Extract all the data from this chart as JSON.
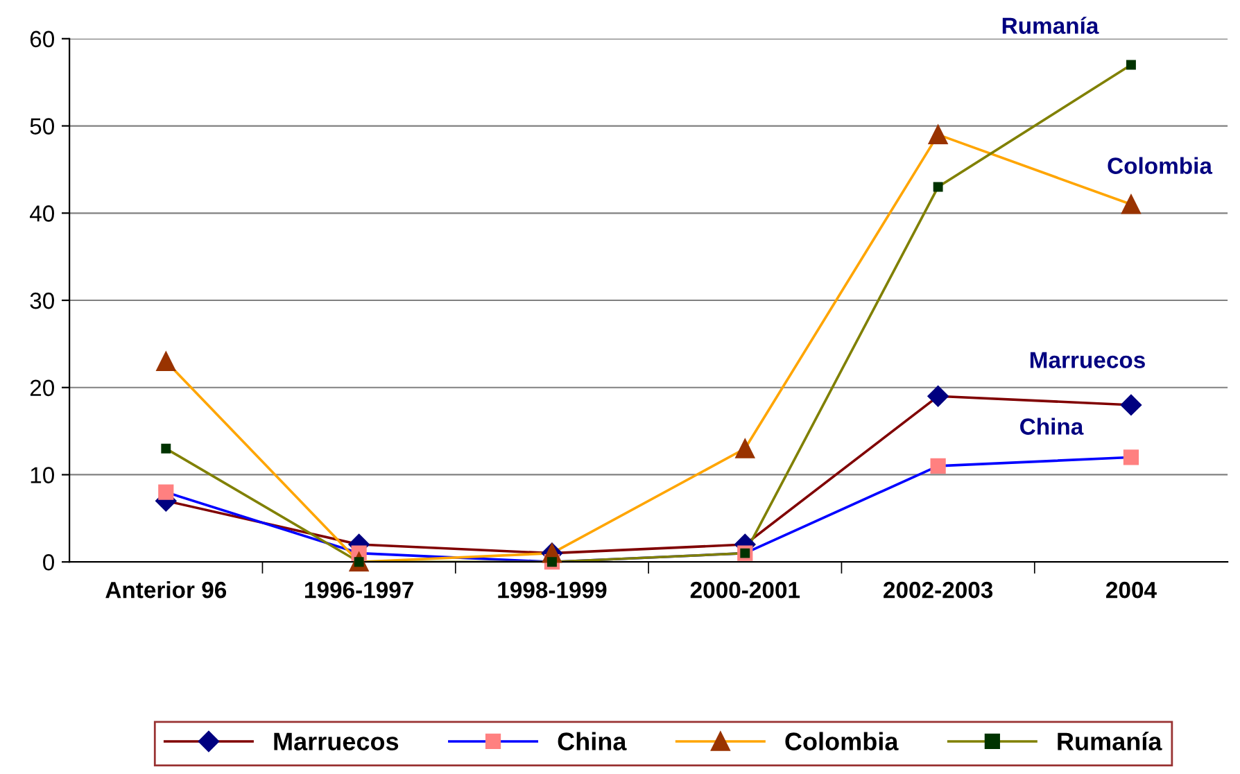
{
  "chart_data": {
    "type": "line",
    "categories": [
      "Anterior 96",
      "1996-1997",
      "1998-1999",
      "2000-2001",
      "2002-2003",
      "2004"
    ],
    "series": [
      {
        "name": "Marruecos",
        "color": "#800000",
        "colors": [
          "#000080",
          "#000080",
          "#000080",
          "#000080",
          "#000080",
          "#000080"
        ],
        "marker": "diamond",
        "values": [
          7,
          2,
          1,
          2,
          19,
          18
        ]
      },
      {
        "name": "China",
        "color": "#0000ff",
        "colors": [
          "#ff8080",
          "#ff8080",
          "#ff8080",
          "#ff8080",
          "#ff8080",
          "#ff8080"
        ],
        "marker": "square",
        "values": [
          8,
          1,
          0,
          1,
          11,
          12
        ]
      },
      {
        "name": "Colombia",
        "color": "#ffa500",
        "colors": [
          "#993300",
          "#993300",
          "#993300",
          "#993300",
          "#993300",
          "#993300"
        ],
        "marker": "triangle",
        "values": [
          23,
          0,
          1,
          13,
          49,
          41
        ]
      },
      {
        "name": "Rumanía",
        "color": "#808000",
        "colors": [
          "#003300",
          "#003300",
          "#003300",
          "#003300",
          "#003300",
          "#003300"
        ],
        "marker": "square",
        "values": [
          13,
          0,
          0,
          1,
          43,
          57
        ]
      }
    ],
    "annotations": [
      "Rumanía",
      "Colombia",
      "Marruecos",
      "China"
    ],
    "ylim": [
      0,
      60
    ],
    "yticks": [
      0,
      10,
      20,
      30,
      40,
      50,
      60
    ],
    "grid": "y",
    "legend": "bottom",
    "line_style": "solid"
  }
}
